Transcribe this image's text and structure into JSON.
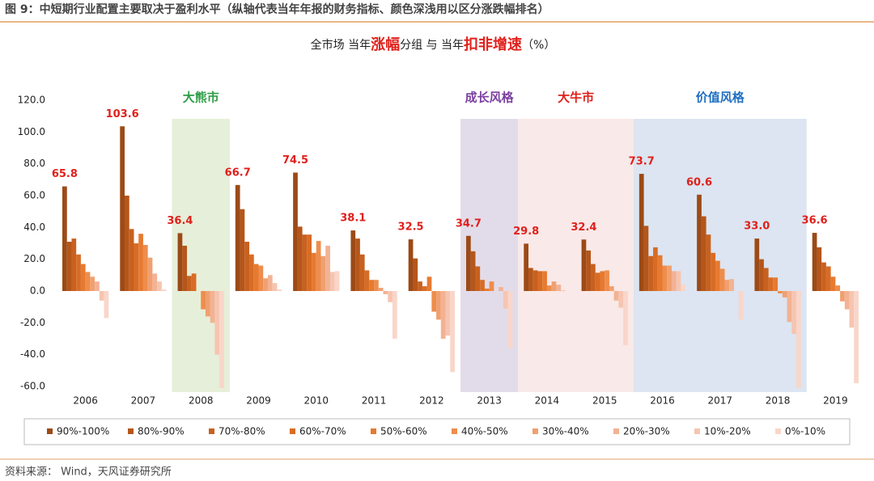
{
  "header": "图 9：中短期行业配置主要取决于盈利水平（纵轴代表当年年报的财务指标、颜色深浅用以区分涨跌幅排名）",
  "source": "资料来源： Wind，天风证券研究所",
  "chart_data": {
    "type": "bar",
    "title_parts": [
      {
        "text": "全市场  当年",
        "highlight": false
      },
      {
        "text": "涨幅",
        "highlight": true
      },
      {
        "text": "分组  与  当年",
        "highlight": false
      },
      {
        "text": "扣非增速",
        "highlight": true
      },
      {
        "text": "（%）",
        "highlight": false
      }
    ],
    "categories": [
      "2006",
      "2007",
      "2008",
      "2009",
      "2010",
      "2011",
      "2012",
      "2013",
      "2014",
      "2015",
      "2016",
      "2017",
      "2018",
      "2019"
    ],
    "ylim": [
      -60,
      120
    ],
    "yticks": [
      {
        "value": -60,
        "label": "-60.0"
      },
      {
        "value": -40,
        "label": "-40.0"
      },
      {
        "value": -20,
        "label": "-20.0"
      },
      {
        "value": 0,
        "label": "0.0"
      },
      {
        "value": 20,
        "label": "20.0"
      },
      {
        "value": 40,
        "label": "40.0"
      },
      {
        "value": 60,
        "label": "60.0"
      },
      {
        "value": 80,
        "label": "80.0"
      },
      {
        "value": 100,
        "label": "100.0"
      },
      {
        "value": 120,
        "label": "120.0"
      }
    ],
    "grid": false,
    "regions": [
      {
        "label": "大熊市",
        "from": 2,
        "to": 2,
        "color": "#e6efd9",
        "label_color": "#2e9e46"
      },
      {
        "label": "成长风格",
        "from": 7,
        "to": 7,
        "color": "#e2dcea",
        "label_color": "#7a3fa0"
      },
      {
        "label": "大牛市",
        "from": 8,
        "to": 9,
        "color": "#f9e9e8",
        "label_color": "#e0201b"
      },
      {
        "label": "价值风格",
        "from": 10,
        "to": 12,
        "color": "#dce5f1",
        "label_color": "#1f6fc0"
      }
    ],
    "series": [
      {
        "name": "90%-100%",
        "color": "#9c4a17",
        "values": [
          65.8,
          103.6,
          36.4,
          66.7,
          74.5,
          38.1,
          32.5,
          34.7,
          29.8,
          32.4,
          73.7,
          60.6,
          33.0,
          36.6
        ],
        "value_labels": [
          "65.8",
          "103.6",
          "36.4",
          "66.7",
          "74.5",
          "38.1",
          "32.5",
          "34.7",
          "29.8",
          "32.4",
          "73.7",
          "60.6",
          "33.0",
          "36.6"
        ]
      },
      {
        "name": "80%-90%",
        "color": "#b5561a",
        "values": [
          31,
          60,
          28.5,
          51.5,
          40.5,
          33,
          20.5,
          25,
          14.5,
          25.5,
          41,
          47,
          20,
          27.5
        ]
      },
      {
        "name": "70%-80%",
        "color": "#c8611f",
        "values": [
          33,
          39,
          9.5,
          31,
          35.5,
          23,
          6,
          15.5,
          13,
          17,
          22,
          35.5,
          14.5,
          18
        ]
      },
      {
        "name": "60%-70%",
        "color": "#d86c25",
        "values": [
          23,
          30,
          11,
          23,
          35.5,
          13,
          3,
          7,
          12.5,
          11.5,
          27.5,
          24,
          8.5,
          15.5
        ]
      },
      {
        "name": "50%-60%",
        "color": "#e67a30",
        "values": [
          17,
          36,
          0,
          17,
          24,
          7,
          9,
          1.5,
          12.5,
          12.5,
          22.5,
          19,
          8.5,
          9
        ]
      },
      {
        "name": "40%-50%",
        "color": "#ee8d4c",
        "values": [
          12,
          29,
          -11.5,
          16,
          31.5,
          7,
          -13,
          6,
          3.5,
          13,
          16,
          14,
          -1.5,
          3.5
        ]
      },
      {
        "name": "30%-40%",
        "color": "#f0a070",
        "values": [
          9,
          21,
          -16,
          8,
          22,
          2,
          -18,
          0,
          6,
          3,
          16,
          7,
          -4,
          -6.5
        ]
      },
      {
        "name": "20%-30%",
        "color": "#f3b293",
        "values": [
          6,
          11,
          -20,
          10,
          28.5,
          -2,
          -30,
          2.5,
          4,
          -6,
          12.5,
          7.5,
          -19.5,
          -11.5
        ]
      },
      {
        "name": "10%-20%",
        "color": "#f6c5b1",
        "values": [
          -6,
          6,
          -40,
          5,
          12,
          -7,
          -28,
          -11,
          0.5,
          -10.5,
          12.5,
          0,
          -27,
          -23
        ]
      },
      {
        "name": "0%-10%",
        "color": "#f9d6c9",
        "values": [
          -17,
          1,
          -61,
          1,
          12.5,
          -30,
          -51,
          -36,
          0,
          -34,
          4,
          -18,
          -61,
          -58
        ]
      }
    ]
  }
}
